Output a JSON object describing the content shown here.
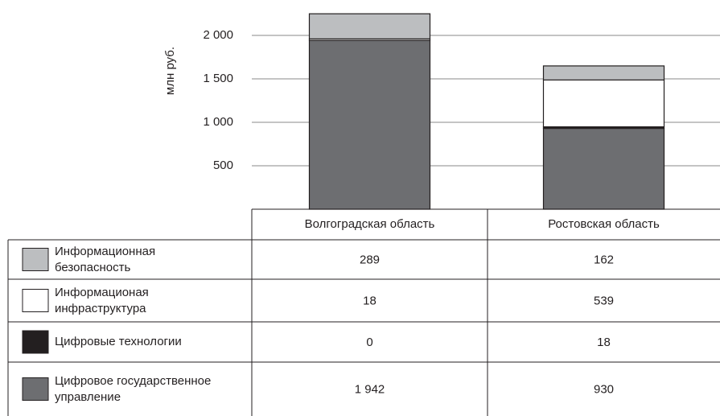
{
  "chart_data": {
    "type": "stacked_bar",
    "y_axis_label": "млн руб.",
    "categories": [
      "Волгоградская область",
      "Ростовская область"
    ],
    "series": [
      {
        "name": "Информационная безопасность",
        "color": "#bcbec0",
        "values": [
          289,
          162
        ]
      },
      {
        "name": "Информационая инфраструктура",
        "color": "#ffffff",
        "values": [
          18,
          539
        ]
      },
      {
        "name": "Цифровые технологии",
        "color": "#231f20",
        "values": [
          0,
          18
        ]
      },
      {
        "name": "Цифровое государственное управление",
        "color": "#6d6e71",
        "values": [
          1942,
          930
        ],
        "value_labels": [
          "1 942",
          "930"
        ]
      }
    ],
    "ylim": [
      0,
      2300
    ],
    "yticks": [
      {
        "value": 500,
        "label": "500"
      },
      {
        "value": 1000,
        "label": "1 000"
      },
      {
        "value": 1500,
        "label": "1 500"
      },
      {
        "value": 2000,
        "label": "2 000"
      }
    ],
    "grid": true
  }
}
